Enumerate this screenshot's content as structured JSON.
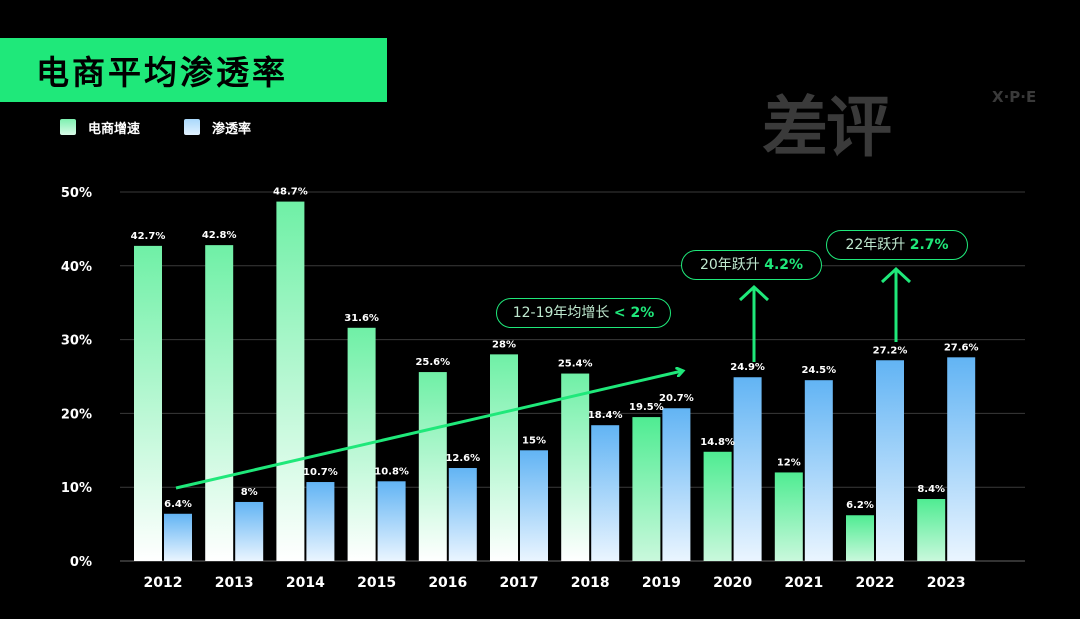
{
  "title": "电商平均渗透率",
  "logo": {
    "main": "差评",
    "side": "X·P·E"
  },
  "legend": [
    {
      "label": "电商增速",
      "color": "#7df0b0"
    },
    {
      "label": "渗透率",
      "color": "#a9d8fb"
    }
  ],
  "callouts": [
    {
      "text": "12-19年均增长",
      "value": "< 2%"
    },
    {
      "text": "20年跃升",
      "value": "4.2%"
    },
    {
      "text": "22年跃升",
      "value": "2.7%"
    }
  ],
  "chart_data": {
    "type": "bar",
    "categories": [
      "2012",
      "2013",
      "2014",
      "2015",
      "2016",
      "2017",
      "2018",
      "2019",
      "2020",
      "2021",
      "2022",
      "2023"
    ],
    "series": [
      {
        "name": "电商增速",
        "values": [
          42.7,
          42.8,
          48.7,
          31.6,
          25.6,
          28,
          25.4,
          19.5,
          14.8,
          12,
          6.2,
          8.4
        ],
        "labels": [
          "42.7%",
          "42.8%",
          "48.7%",
          "31.6%",
          "25.6%",
          "28%",
          "25.4%",
          "19.5%",
          "14.8%",
          "12%",
          "6.2%",
          "8.4%"
        ],
        "color": "#3ee889"
      },
      {
        "name": "渗透率",
        "values": [
          6.4,
          8,
          10.7,
          10.8,
          12.6,
          15,
          18.4,
          20.7,
          24.9,
          24.5,
          27.2,
          27.6
        ],
        "labels": [
          "6.4%",
          "8%",
          "10.7%",
          "10.8%",
          "12.6%",
          "15%",
          "18.4%",
          "20.7%",
          "24.9%",
          "24.5%",
          "27.2%",
          "27.6%"
        ],
        "color": "#6cb8f5"
      }
    ],
    "ylim": [
      0,
      50
    ],
    "yticks": [
      "0%",
      "10%",
      "20%",
      "30%",
      "40%",
      "50%"
    ],
    "grid": true,
    "legend_position": "top-left"
  }
}
